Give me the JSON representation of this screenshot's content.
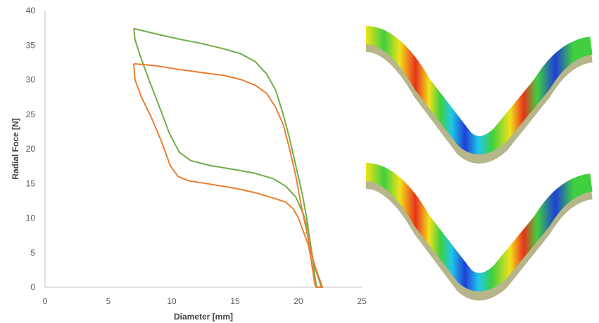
{
  "chart_data": {
    "type": "line",
    "xlabel": "Diameter [mm]",
    "ylabel": "Radial Foce [N]",
    "xlim": [
      0,
      25
    ],
    "ylim": [
      0,
      40
    ],
    "xticks": [
      "0",
      "5",
      "10",
      "15",
      "20",
      "25"
    ],
    "yticks": [
      "0",
      "5",
      "10",
      "15",
      "20",
      "25",
      "30",
      "35",
      "40"
    ],
    "grid": false,
    "legend": "none",
    "series": [
      {
        "color": "#70AD47",
        "points": [
          [
            7.0,
            37.4
          ],
          [
            7.1,
            35.8
          ],
          [
            7.5,
            33.5
          ],
          [
            8.2,
            30.0
          ],
          [
            9.0,
            26.2
          ],
          [
            9.8,
            22.3
          ],
          [
            10.6,
            19.5
          ],
          [
            11.5,
            18.3
          ],
          [
            13.0,
            17.6
          ],
          [
            15.0,
            17.0
          ],
          [
            16.5,
            16.5
          ],
          [
            18.0,
            15.7
          ],
          [
            19.0,
            14.6
          ],
          [
            19.8,
            13.0
          ],
          [
            20.4,
            10.5
          ],
          [
            20.8,
            8.0
          ],
          [
            21.1,
            4.5
          ],
          [
            21.3,
            1.5
          ],
          [
            21.4,
            0.3
          ],
          [
            21.5,
            0.0
          ],
          [
            21.8,
            0.0
          ],
          [
            21.6,
            1.2
          ],
          [
            21.3,
            2.8
          ],
          [
            21.0,
            5.0
          ],
          [
            20.7,
            9.5
          ],
          [
            20.3,
            13.5
          ],
          [
            19.8,
            17.5
          ],
          [
            19.3,
            21.5
          ],
          [
            18.8,
            25.0
          ],
          [
            18.2,
            28.5
          ],
          [
            17.5,
            30.8
          ],
          [
            16.6,
            32.6
          ],
          [
            15.4,
            33.8
          ],
          [
            13.8,
            34.6
          ],
          [
            12.2,
            35.3
          ],
          [
            10.5,
            35.9
          ],
          [
            8.8,
            36.6
          ],
          [
            7.0,
            37.4
          ]
        ]
      },
      {
        "color": "#ED7D31",
        "points": [
          [
            7.0,
            32.3
          ],
          [
            7.1,
            30.0
          ],
          [
            7.6,
            27.5
          ],
          [
            8.4,
            24.5
          ],
          [
            9.2,
            21.0
          ],
          [
            9.9,
            17.5
          ],
          [
            10.5,
            16.0
          ],
          [
            11.3,
            15.4
          ],
          [
            13.0,
            14.9
          ],
          [
            15.0,
            14.3
          ],
          [
            16.5,
            13.7
          ],
          [
            18.0,
            12.9
          ],
          [
            19.0,
            12.3
          ],
          [
            19.6,
            11.3
          ],
          [
            20.0,
            10.0
          ],
          [
            20.4,
            8.0
          ],
          [
            20.8,
            6.0
          ],
          [
            21.0,
            4.0
          ],
          [
            21.2,
            1.5
          ],
          [
            21.3,
            0.4
          ],
          [
            21.4,
            0.0
          ],
          [
            21.9,
            0.0
          ],
          [
            21.7,
            1.0
          ],
          [
            21.4,
            2.5
          ],
          [
            21.0,
            5.0
          ],
          [
            20.6,
            8.5
          ],
          [
            20.2,
            12.0
          ],
          [
            19.8,
            16.0
          ],
          [
            19.3,
            20.0
          ],
          [
            18.8,
            23.5
          ],
          [
            18.2,
            26.0
          ],
          [
            17.5,
            28.0
          ],
          [
            16.6,
            29.2
          ],
          [
            15.5,
            30.0
          ],
          [
            14.2,
            30.6
          ],
          [
            12.5,
            31.0
          ],
          [
            10.5,
            31.5
          ],
          [
            8.8,
            32.0
          ],
          [
            7.0,
            32.3
          ]
        ]
      }
    ]
  },
  "fea": {
    "colors": {
      "low": "#1f3fd6",
      "mid_low": "#20c8e8",
      "mid": "#3fcf3f",
      "mid_high": "#f2e21a",
      "high": "#e8321c",
      "edge": "#7a7a2a"
    }
  }
}
